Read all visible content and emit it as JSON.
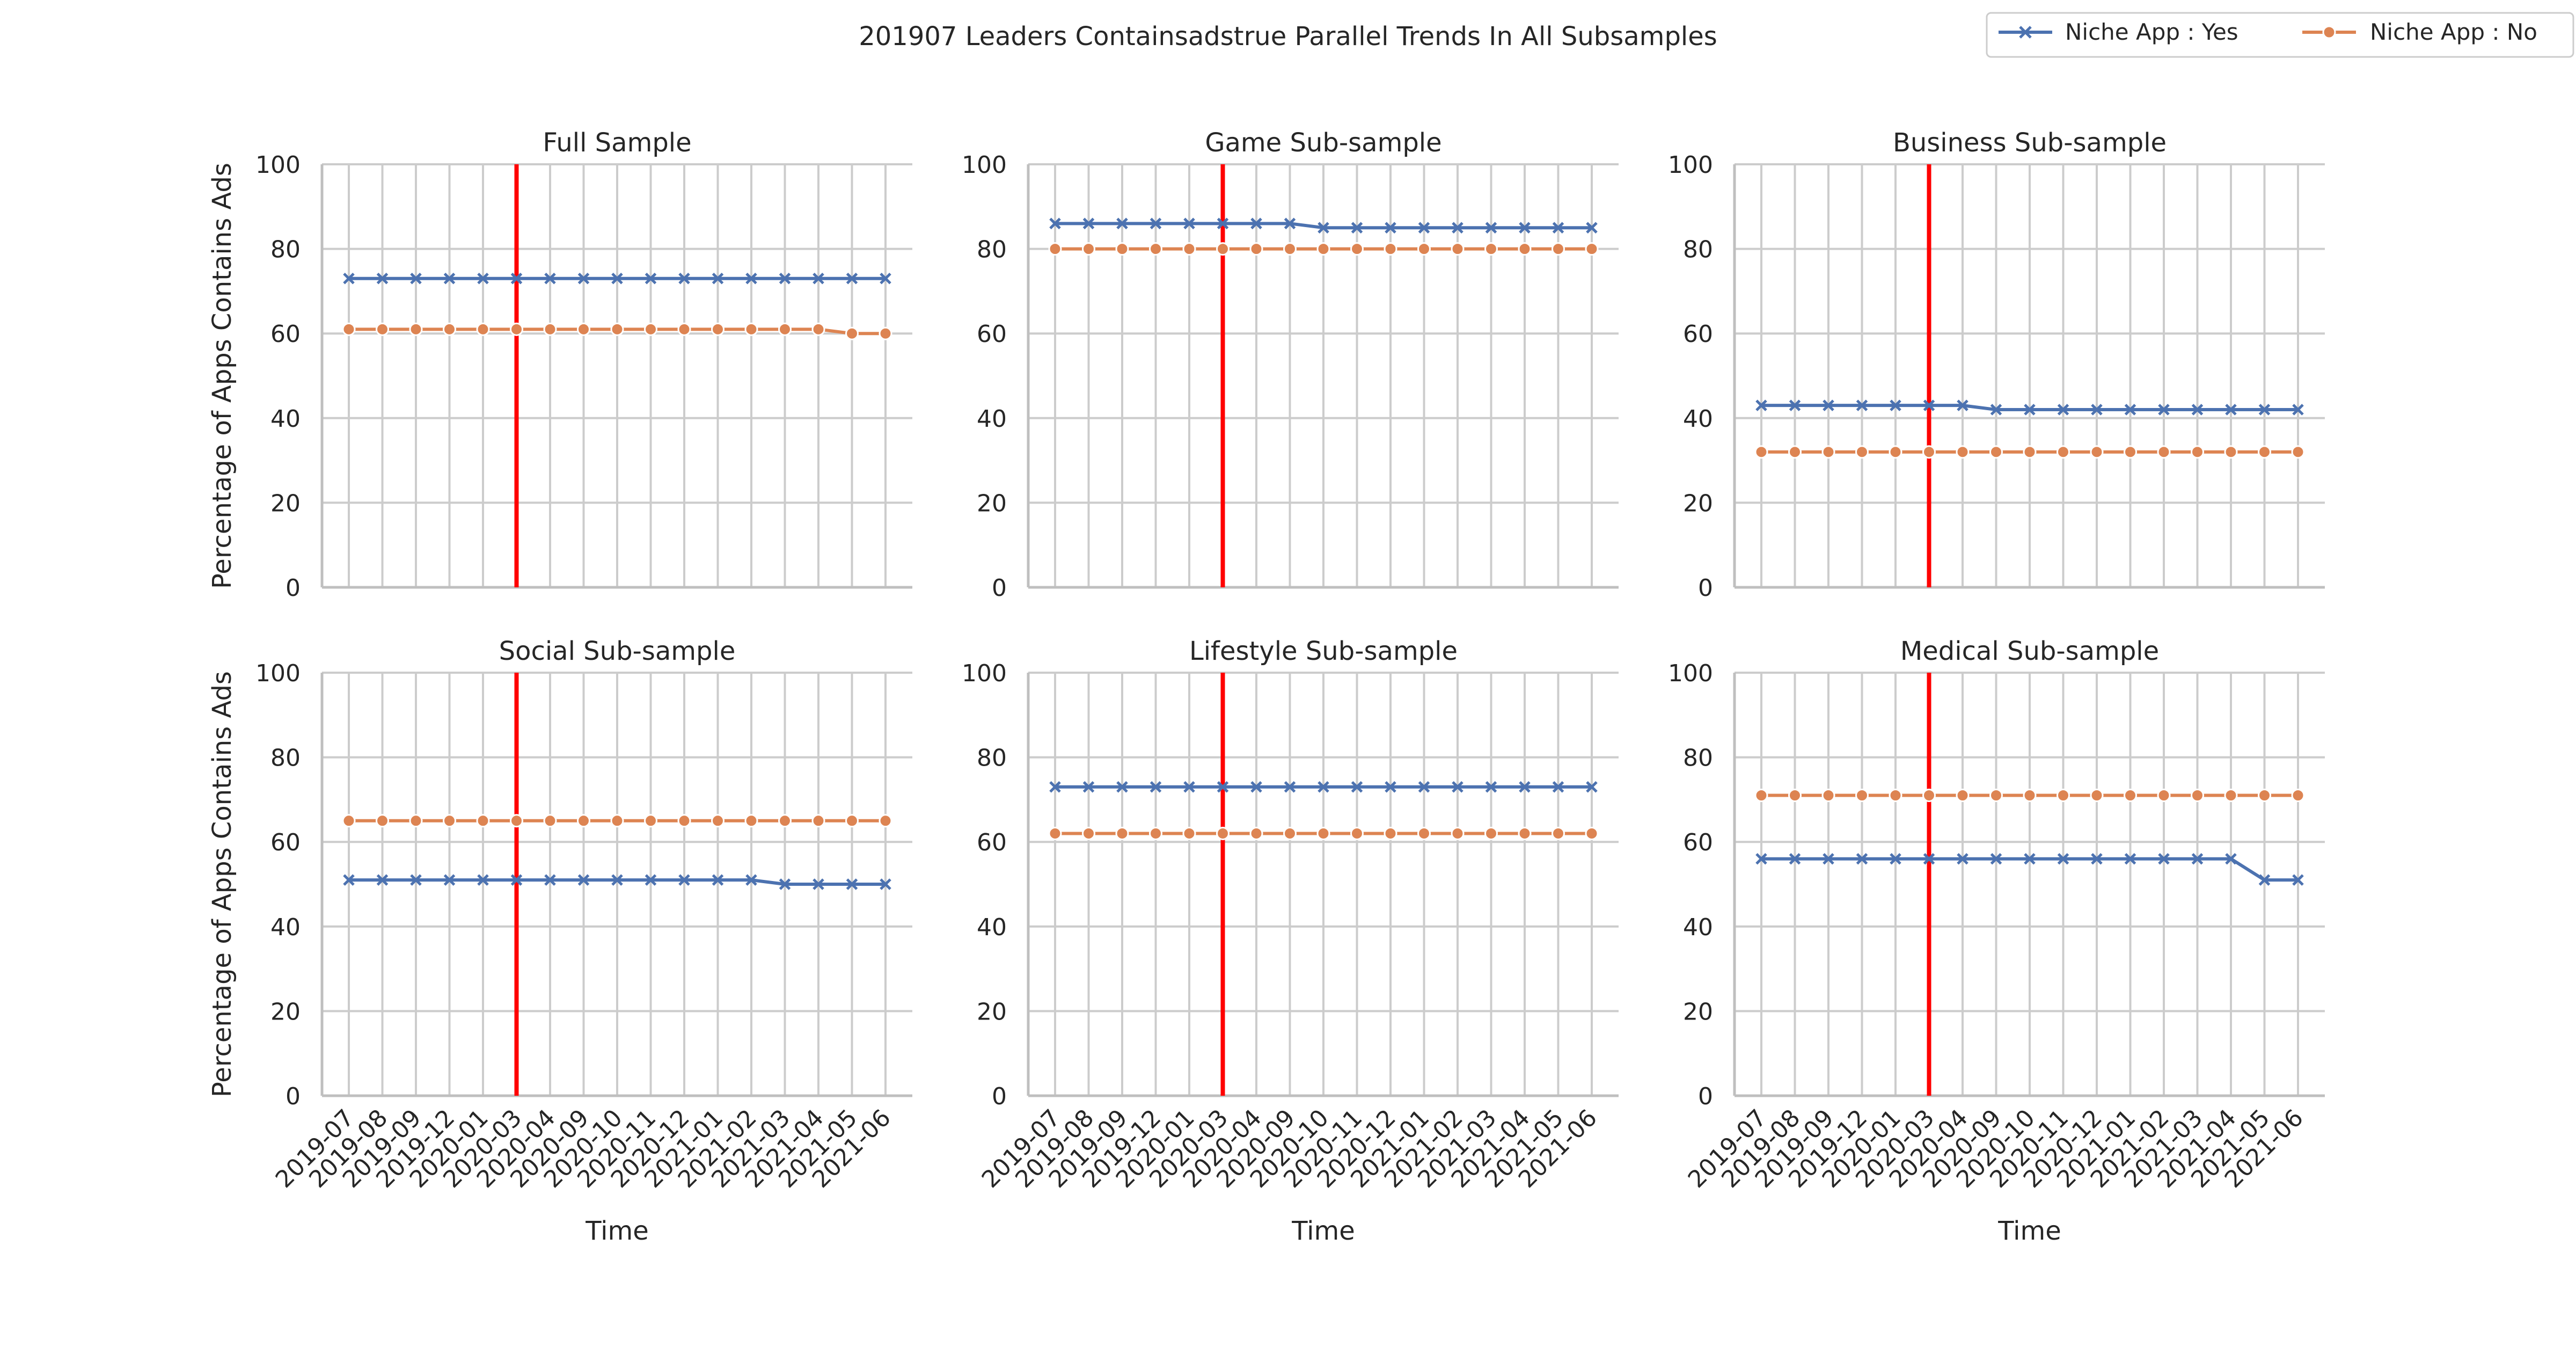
{
  "figure_title": "201907 Leaders Containsadstrue Parallel Trends In All Subsamples",
  "colors": {
    "series_yes": "#4c72b0",
    "series_no": "#dd8452",
    "vertical_line": "#ff0000",
    "grid": "#cccccc",
    "axis": "#bfbfbf"
  },
  "legend": {
    "position": "top-right",
    "entries": [
      "Niche App : Yes",
      "Niche App : No"
    ]
  },
  "chart_data": [
    {
      "type": "line",
      "title": "Full Sample",
      "xlabel": "",
      "ylabel": "Percentage of Apps Contains Ads",
      "ylim": [
        0,
        100
      ],
      "yticks": [
        0,
        20,
        40,
        60,
        80,
        100
      ],
      "grid": true,
      "x_tick_labels_visible": false,
      "vline_at": "2020-03",
      "x": [
        "2019-07",
        "2019-08",
        "2019-09",
        "2019-12",
        "2020-01",
        "2020-03",
        "2020-04",
        "2020-09",
        "2020-10",
        "2020-11",
        "2020-12",
        "2021-01",
        "2021-02",
        "2021-03",
        "2021-04",
        "2021-05",
        "2021-06"
      ],
      "series": [
        {
          "name": "Niche App : Yes",
          "marker": "x",
          "values": [
            73,
            73,
            73,
            73,
            73,
            73,
            73,
            73,
            73,
            73,
            73,
            73,
            73,
            73,
            73,
            73,
            73
          ]
        },
        {
          "name": "Niche App : No",
          "marker": "o",
          "values": [
            61,
            61,
            61,
            61,
            61,
            61,
            61,
            61,
            61,
            61,
            61,
            61,
            61,
            61,
            61,
            60,
            60
          ]
        }
      ]
    },
    {
      "type": "line",
      "title": "Game Sub-sample",
      "xlabel": "",
      "ylabel": "",
      "ylim": [
        0,
        100
      ],
      "yticks": [
        0,
        20,
        40,
        60,
        80,
        100
      ],
      "grid": true,
      "x_tick_labels_visible": false,
      "vline_at": "2020-03",
      "x": [
        "2019-07",
        "2019-08",
        "2019-09",
        "2019-12",
        "2020-01",
        "2020-03",
        "2020-04",
        "2020-09",
        "2020-10",
        "2020-11",
        "2020-12",
        "2021-01",
        "2021-02",
        "2021-03",
        "2021-04",
        "2021-05",
        "2021-06"
      ],
      "series": [
        {
          "name": "Niche App : Yes",
          "marker": "x",
          "values": [
            86,
            86,
            86,
            86,
            86,
            86,
            86,
            86,
            85,
            85,
            85,
            85,
            85,
            85,
            85,
            85,
            85
          ]
        },
        {
          "name": "Niche App : No",
          "marker": "o",
          "values": [
            80,
            80,
            80,
            80,
            80,
            80,
            80,
            80,
            80,
            80,
            80,
            80,
            80,
            80,
            80,
            80,
            80
          ]
        }
      ]
    },
    {
      "type": "line",
      "title": "Business Sub-sample",
      "xlabel": "",
      "ylabel": "",
      "ylim": [
        0,
        100
      ],
      "yticks": [
        0,
        20,
        40,
        60,
        80,
        100
      ],
      "grid": true,
      "x_tick_labels_visible": false,
      "vline_at": "2020-03",
      "x": [
        "2019-07",
        "2019-08",
        "2019-09",
        "2019-12",
        "2020-01",
        "2020-03",
        "2020-04",
        "2020-09",
        "2020-10",
        "2020-11",
        "2020-12",
        "2021-01",
        "2021-02",
        "2021-03",
        "2021-04",
        "2021-05",
        "2021-06"
      ],
      "series": [
        {
          "name": "Niche App : Yes",
          "marker": "x",
          "values": [
            43,
            43,
            43,
            43,
            43,
            43,
            43,
            42,
            42,
            42,
            42,
            42,
            42,
            42,
            42,
            42,
            42
          ]
        },
        {
          "name": "Niche App : No",
          "marker": "o",
          "values": [
            32,
            32,
            32,
            32,
            32,
            32,
            32,
            32,
            32,
            32,
            32,
            32,
            32,
            32,
            32,
            32,
            32
          ]
        }
      ]
    },
    {
      "type": "line",
      "title": "Social Sub-sample",
      "xlabel": "Time",
      "ylabel": "Percentage of Apps Contains Ads",
      "ylim": [
        0,
        100
      ],
      "yticks": [
        0,
        20,
        40,
        60,
        80,
        100
      ],
      "grid": true,
      "x_tick_labels_visible": true,
      "vline_at": "2020-03",
      "x": [
        "2019-07",
        "2019-08",
        "2019-09",
        "2019-12",
        "2020-01",
        "2020-03",
        "2020-04",
        "2020-09",
        "2020-10",
        "2020-11",
        "2020-12",
        "2021-01",
        "2021-02",
        "2021-03",
        "2021-04",
        "2021-05",
        "2021-06"
      ],
      "series": [
        {
          "name": "Niche App : Yes",
          "marker": "x",
          "values": [
            51,
            51,
            51,
            51,
            51,
            51,
            51,
            51,
            51,
            51,
            51,
            51,
            51,
            50,
            50,
            50,
            50
          ]
        },
        {
          "name": "Niche App : No",
          "marker": "o",
          "values": [
            65,
            65,
            65,
            65,
            65,
            65,
            65,
            65,
            65,
            65,
            65,
            65,
            65,
            65,
            65,
            65,
            65
          ]
        }
      ]
    },
    {
      "type": "line",
      "title": "Lifestyle Sub-sample",
      "xlabel": "Time",
      "ylabel": "",
      "ylim": [
        0,
        100
      ],
      "yticks": [
        0,
        20,
        40,
        60,
        80,
        100
      ],
      "grid": true,
      "x_tick_labels_visible": true,
      "vline_at": "2020-03",
      "x": [
        "2019-07",
        "2019-08",
        "2019-09",
        "2019-12",
        "2020-01",
        "2020-03",
        "2020-04",
        "2020-09",
        "2020-10",
        "2020-11",
        "2020-12",
        "2021-01",
        "2021-02",
        "2021-03",
        "2021-04",
        "2021-05",
        "2021-06"
      ],
      "series": [
        {
          "name": "Niche App : Yes",
          "marker": "x",
          "values": [
            73,
            73,
            73,
            73,
            73,
            73,
            73,
            73,
            73,
            73,
            73,
            73,
            73,
            73,
            73,
            73,
            73
          ]
        },
        {
          "name": "Niche App : No",
          "marker": "o",
          "values": [
            62,
            62,
            62,
            62,
            62,
            62,
            62,
            62,
            62,
            62,
            62,
            62,
            62,
            62,
            62,
            62,
            62
          ]
        }
      ]
    },
    {
      "type": "line",
      "title": "Medical Sub-sample",
      "xlabel": "Time",
      "ylabel": "",
      "ylim": [
        0,
        100
      ],
      "yticks": [
        0,
        20,
        40,
        60,
        80,
        100
      ],
      "grid": true,
      "x_tick_labels_visible": true,
      "vline_at": "2020-03",
      "x": [
        "2019-07",
        "2019-08",
        "2019-09",
        "2019-12",
        "2020-01",
        "2020-03",
        "2020-04",
        "2020-09",
        "2020-10",
        "2020-11",
        "2020-12",
        "2021-01",
        "2021-02",
        "2021-03",
        "2021-04",
        "2021-05",
        "2021-06"
      ],
      "series": [
        {
          "name": "Niche App : Yes",
          "marker": "x",
          "values": [
            56,
            56,
            56,
            56,
            56,
            56,
            56,
            56,
            56,
            56,
            56,
            56,
            56,
            56,
            56,
            51,
            51
          ]
        },
        {
          "name": "Niche App : No",
          "marker": "o",
          "values": [
            71,
            71,
            71,
            71,
            71,
            71,
            71,
            71,
            71,
            71,
            71,
            71,
            71,
            71,
            71,
            71,
            71
          ]
        }
      ]
    }
  ]
}
